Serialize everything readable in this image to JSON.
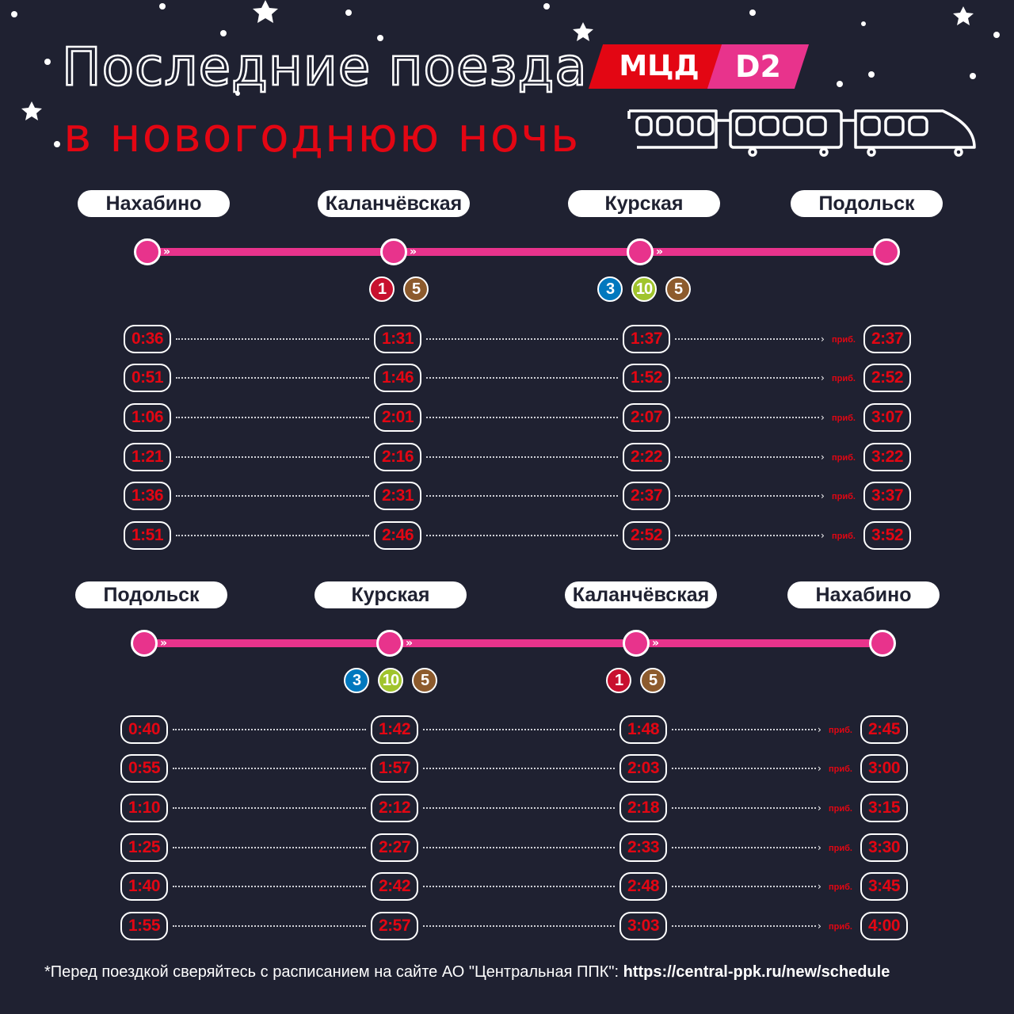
{
  "title": {
    "line1": "Последние поезда",
    "line2": "в новогоднюю ночь"
  },
  "logo": {
    "mcd": "МЦД",
    "d2": "D2",
    "train": "train-icon"
  },
  "colors": {
    "background": "#1f2131",
    "red": "#e30613",
    "pink": "#e8338c",
    "line1": "#c8102e",
    "line3": "#0078be",
    "line10": "#a0c42d",
    "line5": "#8d5b2d"
  },
  "sections": [
    {
      "stations": [
        "Нахабино",
        "Каланчёвская",
        "Курская",
        "Подольск"
      ],
      "transfers": [
        [],
        [
          "1",
          "5"
        ],
        [
          "3",
          "10",
          "5"
        ],
        []
      ],
      "arrival_label": "приб.",
      "rows": [
        [
          "0:36",
          "1:31",
          "1:37",
          "2:37"
        ],
        [
          "0:51",
          "1:46",
          "1:52",
          "2:52"
        ],
        [
          "1:06",
          "2:01",
          "2:07",
          "3:07"
        ],
        [
          "1:21",
          "2:16",
          "2:22",
          "3:22"
        ],
        [
          "1:36",
          "2:31",
          "2:37",
          "3:37"
        ],
        [
          "1:51",
          "2:46",
          "2:52",
          "3:52"
        ]
      ]
    },
    {
      "stations": [
        "Подольск",
        "Курская",
        "Каланчёвская",
        "Нахабино"
      ],
      "transfers": [
        [],
        [
          "3",
          "10",
          "5"
        ],
        [
          "1",
          "5"
        ],
        []
      ],
      "arrival_label": "приб.",
      "rows": [
        [
          "0:40",
          "1:42",
          "1:48",
          "2:45"
        ],
        [
          "0:55",
          "1:57",
          "2:03",
          "3:00"
        ],
        [
          "1:10",
          "2:12",
          "2:18",
          "3:15"
        ],
        [
          "1:25",
          "2:27",
          "2:33",
          "3:30"
        ],
        [
          "1:40",
          "2:42",
          "2:48",
          "3:45"
        ],
        [
          "1:55",
          "2:57",
          "3:03",
          "4:00"
        ]
      ]
    }
  ],
  "footer": {
    "note": "*Перед поездкой сверяйтесь с расписанием на сайте АО \"Центральная ППК\": ",
    "link": "https://central-ppk.ru/new/schedule"
  }
}
